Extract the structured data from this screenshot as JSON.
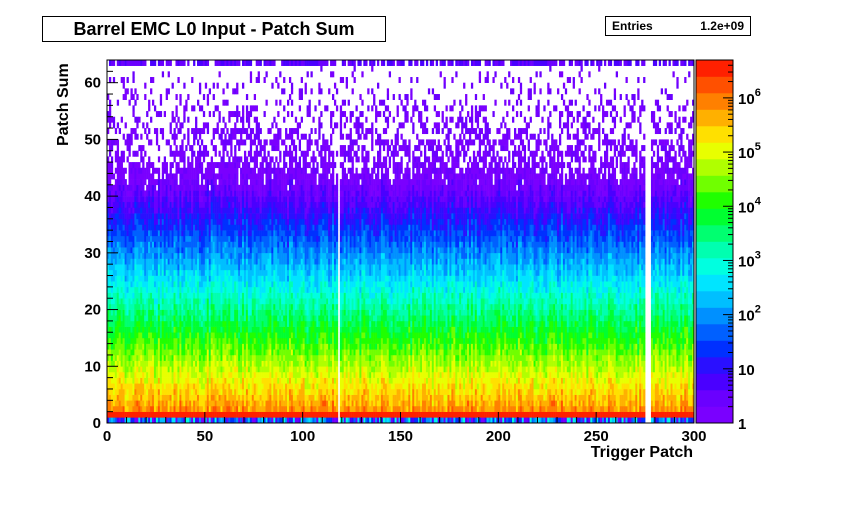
{
  "chart_data": {
    "type": "heatmap",
    "title": "Barrel EMC L0 Input - Patch Sum",
    "stats": {
      "label": "Entries",
      "value": "1.2e+09"
    },
    "xlabel": "Trigger Patch",
    "ylabel": "Patch Sum",
    "xlim": [
      0,
      300
    ],
    "ylim": [
      0,
      64
    ],
    "x_ticks": [
      "0",
      "50",
      "100",
      "150",
      "200",
      "250",
      "300"
    ],
    "y_ticks": [
      "0",
      "10",
      "20",
      "30",
      "40",
      "50",
      "60"
    ],
    "z_scale": "log",
    "z_range": [
      1,
      5000000
    ],
    "z_ticks": [
      {
        "base": "1",
        "exp": ""
      },
      {
        "base": "10",
        "exp": ""
      },
      {
        "base": "10",
        "exp": "2"
      },
      {
        "base": "10",
        "exp": "3"
      },
      {
        "base": "10",
        "exp": "4"
      },
      {
        "base": "10",
        "exp": "5"
      },
      {
        "base": "10",
        "exp": "6"
      }
    ],
    "palette": [
      "#7a00ff",
      "#6a00ff",
      "#4a00ff",
      "#2a10ff",
      "#0030ff",
      "#0060ff",
      "#0090ff",
      "#00bfff",
      "#00e5ff",
      "#00ffe0",
      "#00ffb0",
      "#00ff70",
      "#00ff30",
      "#20ff00",
      "#70ff00",
      "#b0ff00",
      "#e8ff00",
      "#ffe000",
      "#ffb000",
      "#ff8000",
      "#ff5000",
      "#ff2000"
    ],
    "grid": false,
    "empty_columns": [
      118,
      275,
      276,
      277
    ]
  }
}
